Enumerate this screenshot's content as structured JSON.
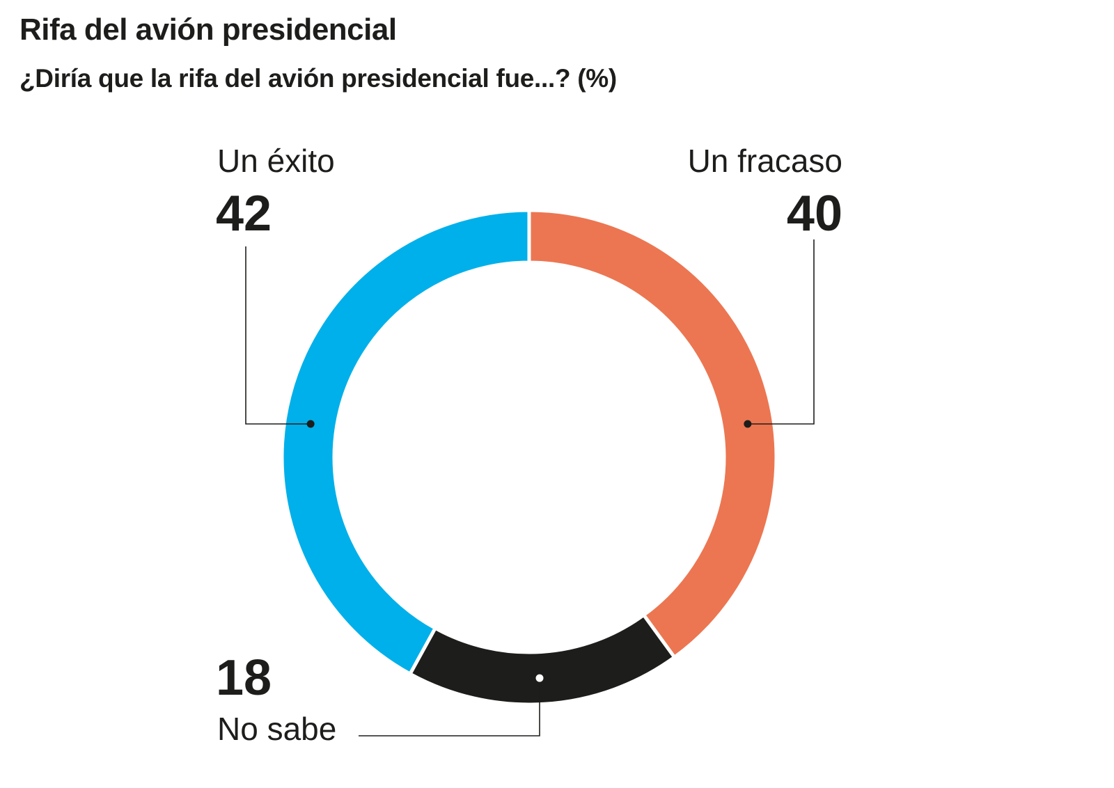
{
  "title": "Rifa del avión presidencial",
  "subtitle": "¿Diría que la rifa del avión presidencial fue...? (%)",
  "chart_data": {
    "type": "pie",
    "style": "donut",
    "categories": [
      "Un éxito",
      "Un fracaso",
      "No sabe"
    ],
    "values": [
      42,
      40,
      18
    ],
    "colors": [
      "#00b0ea",
      "#ec7651",
      "#1d1d1b"
    ],
    "value_labels": [
      "42",
      "40",
      "18"
    ]
  }
}
